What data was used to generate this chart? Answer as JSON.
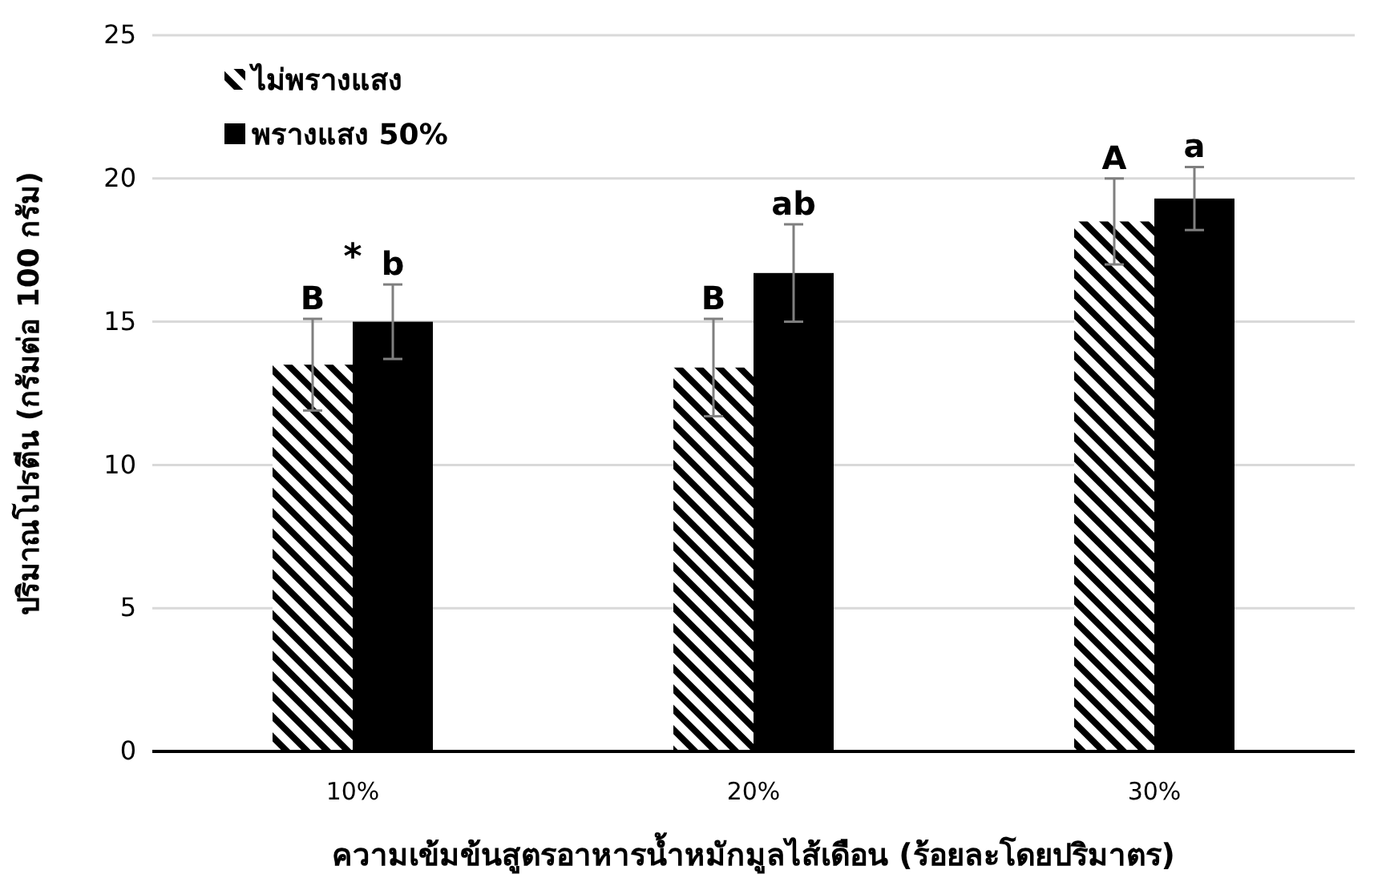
{
  "chart_data": {
    "type": "bar",
    "xlabel": "ความเข้มข้นสูตรอาหารน้ำหมักมูลไส้เดือน (ร้อยละโดยปริมาตร)",
    "ylabel": "ปริมาณโปรตีน (กรัมต่อ 100 กรัม)",
    "categories": [
      "10%",
      "20%",
      "30%"
    ],
    "series": [
      {
        "name": "ไม่พรางแสง",
        "color": "#000000",
        "values": [
          13.5,
          13.4,
          18.5
        ],
        "errors": [
          1.6,
          1.7,
          1.5
        ],
        "value_labels": [
          "B",
          "B",
          "A"
        ]
      },
      {
        "name": "พรางแสง 50%",
        "color": "#000000",
        "values": [
          15.0,
          16.7,
          19.3
        ],
        "errors": [
          1.3,
          1.7,
          1.1
        ],
        "value_labels": [
          "b",
          "ab",
          "a"
        ]
      }
    ],
    "annotations": [
      "*"
    ],
    "ylim": [
      0,
      25
    ],
    "yticks": [
      0,
      5,
      10,
      15,
      20,
      25
    ],
    "grid": "y",
    "legend": "top left"
  }
}
